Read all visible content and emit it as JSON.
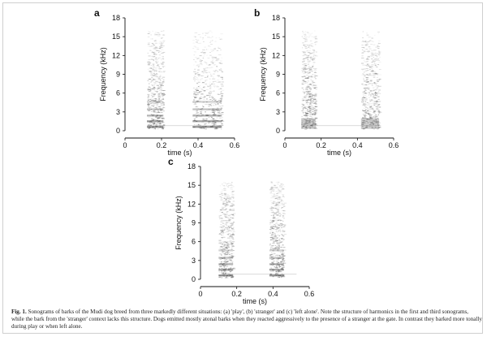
{
  "figure": {
    "caption_label": "Fig. 1.",
    "caption_text": "Sonograms of barks of the Mudi dog breed from three markedly different situations: (a) 'play', (b) 'stranger' and (c) 'left alone'. Note the structure of harmonics in the first and third sonograms, while the bark from the 'stranger' context lacks this structure. Dogs emitted mostly atonal barks when they reacted aggressively to the presence of a stranger at the gate. In contrast they barked more tonally during play or when left alone."
  },
  "colors": {
    "ink": "#111111",
    "spectro": "#3a3a3a"
  },
  "chart_data": [
    {
      "type": "heatmap",
      "panel_label": "a",
      "xlabel": "time (s)",
      "ylabel": "Frequency (kHz)",
      "xlim": [
        0,
        0.6
      ],
      "ylim": [
        0,
        18
      ],
      "x_ticks": [
        "0",
        "0.2",
        "0.4",
        "0.6"
      ],
      "y_ticks": [
        "0",
        "3",
        "6",
        "9",
        "12",
        "15",
        "18"
      ],
      "x_tick_values": [
        0,
        0.2,
        0.4,
        0.6
      ],
      "y_tick_values": [
        0,
        3,
        6,
        9,
        12,
        15,
        18
      ],
      "barks": [
        {
          "start_s": 0.12,
          "end_s": 0.21,
          "max_khz": 16,
          "tonal": true
        },
        {
          "start_s": 0.37,
          "end_s": 0.53,
          "max_khz": 16,
          "tonal": true
        }
      ]
    },
    {
      "type": "heatmap",
      "panel_label": "b",
      "xlabel": "time (s)",
      "ylabel": "Frequency (kHz)",
      "xlim": [
        0,
        0.6
      ],
      "ylim": [
        0,
        18
      ],
      "x_ticks": [
        "0",
        "0.2",
        "0.4",
        "0.6"
      ],
      "y_ticks": [
        "0",
        "3",
        "6",
        "9",
        "12",
        "15",
        "18"
      ],
      "x_tick_values": [
        0,
        0.2,
        0.4,
        0.6
      ],
      "y_tick_values": [
        0,
        3,
        6,
        9,
        12,
        15,
        18
      ],
      "barks": [
        {
          "start_s": 0.09,
          "end_s": 0.17,
          "max_khz": 16,
          "tonal": false
        },
        {
          "start_s": 0.42,
          "end_s": 0.52,
          "max_khz": 16,
          "tonal": false
        }
      ]
    },
    {
      "type": "heatmap",
      "panel_label": "c",
      "xlabel": "time (s)",
      "ylabel": "Frequency (kHz)",
      "xlim": [
        0,
        0.6
      ],
      "ylim": [
        0,
        18
      ],
      "x_ticks": [
        "0",
        "0.2",
        "0.4",
        "0.6"
      ],
      "y_ticks": [
        "0",
        "3",
        "6",
        "9",
        "12",
        "15",
        "18"
      ],
      "x_tick_values": [
        0,
        0.2,
        0.4,
        0.6
      ],
      "y_tick_values": [
        0,
        3,
        6,
        9,
        12,
        15,
        18
      ],
      "barks": [
        {
          "start_s": 0.1,
          "end_s": 0.18,
          "max_khz": 16,
          "tonal": true
        },
        {
          "start_s": 0.38,
          "end_s": 0.46,
          "max_khz": 16,
          "tonal": true
        }
      ]
    }
  ]
}
